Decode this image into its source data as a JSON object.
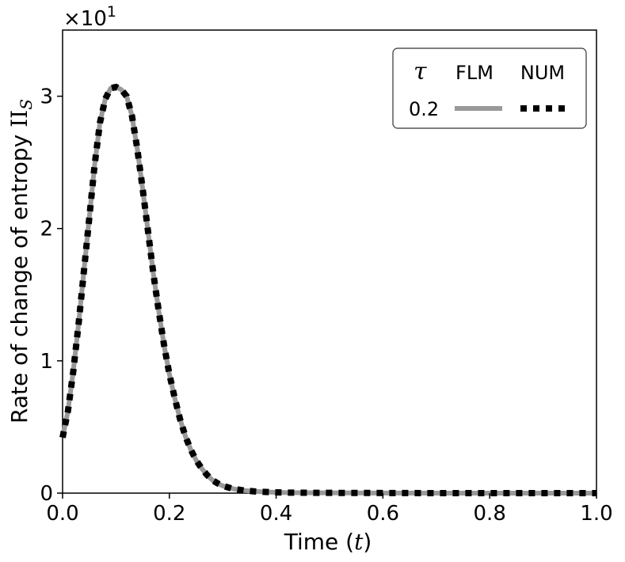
{
  "chart_data": {
    "type": "line",
    "xlabel_prefix": "Time (",
    "xlabel_var": "t",
    "xlabel_suffix": ")",
    "ylabel_prefix": "Rate of change of entropy ",
    "ylabel_symbol": "II",
    "ylabel_sub": "S",
    "y_multiplier_base": "×10",
    "y_multiplier_exp": "1",
    "xlim": [
      0.0,
      1.0
    ],
    "ylim": [
      0,
      3.5
    ],
    "x_ticks": [
      0.0,
      0.2,
      0.4,
      0.6,
      0.8,
      1.0
    ],
    "x_tick_labels": [
      "0.0",
      "0.2",
      "0.4",
      "0.6",
      "0.8",
      "1.0"
    ],
    "y_ticks": [
      0,
      1,
      2,
      3
    ],
    "y_tick_labels": [
      "0",
      "1",
      "2",
      "3"
    ],
    "grid": false,
    "legend": {
      "placement": "top-right",
      "header_symbol": "τ",
      "header_col1": "FLM",
      "header_col2": "NUM",
      "row_label": "0.2"
    },
    "colors": {
      "flm": "#999999",
      "num": "#000000"
    },
    "series": [
      {
        "name": "FLM",
        "style": "solid",
        "x": [
          0.0,
          0.01,
          0.02,
          0.03,
          0.04,
          0.05,
          0.06,
          0.07,
          0.08,
          0.09,
          0.1,
          0.11,
          0.12,
          0.13,
          0.14,
          0.15,
          0.16,
          0.17,
          0.18,
          0.19,
          0.2,
          0.21,
          0.22,
          0.23,
          0.24,
          0.25,
          0.26,
          0.27,
          0.28,
          0.29,
          0.3,
          0.32,
          0.34,
          0.36,
          0.38,
          0.4,
          0.42,
          0.45,
          0.5,
          0.6,
          0.7,
          0.8,
          0.9,
          1.0
        ],
        "y": [
          0.42,
          0.62,
          0.92,
          1.28,
          1.68,
          2.08,
          2.48,
          2.8,
          2.98,
          3.06,
          3.07,
          3.05,
          3.0,
          2.85,
          2.6,
          2.3,
          1.98,
          1.66,
          1.38,
          1.12,
          0.9,
          0.72,
          0.56,
          0.43,
          0.33,
          0.25,
          0.19,
          0.14,
          0.1,
          0.075,
          0.055,
          0.032,
          0.02,
          0.013,
          0.009,
          0.006,
          0.004,
          0.003,
          0.002,
          0.001,
          0.0,
          0.0,
          0.0,
          0.0
        ]
      },
      {
        "name": "NUM",
        "style": "dotted",
        "x": [
          0.0,
          0.01,
          0.02,
          0.03,
          0.04,
          0.05,
          0.06,
          0.07,
          0.08,
          0.09,
          0.1,
          0.11,
          0.12,
          0.13,
          0.14,
          0.15,
          0.16,
          0.17,
          0.18,
          0.19,
          0.2,
          0.21,
          0.22,
          0.23,
          0.24,
          0.25,
          0.26,
          0.27,
          0.28,
          0.29,
          0.3,
          0.32,
          0.34,
          0.36,
          0.38,
          0.4,
          0.42,
          0.45,
          0.5,
          0.6,
          0.7,
          0.8,
          0.9,
          1.0
        ],
        "y": [
          0.42,
          0.62,
          0.92,
          1.28,
          1.68,
          2.08,
          2.48,
          2.8,
          2.98,
          3.06,
          3.07,
          3.05,
          3.0,
          2.85,
          2.6,
          2.3,
          1.98,
          1.66,
          1.38,
          1.12,
          0.9,
          0.72,
          0.56,
          0.43,
          0.33,
          0.25,
          0.19,
          0.14,
          0.1,
          0.075,
          0.055,
          0.032,
          0.02,
          0.013,
          0.009,
          0.006,
          0.004,
          0.003,
          0.002,
          0.001,
          0.0,
          0.0,
          0.0,
          0.0
        ]
      }
    ]
  }
}
